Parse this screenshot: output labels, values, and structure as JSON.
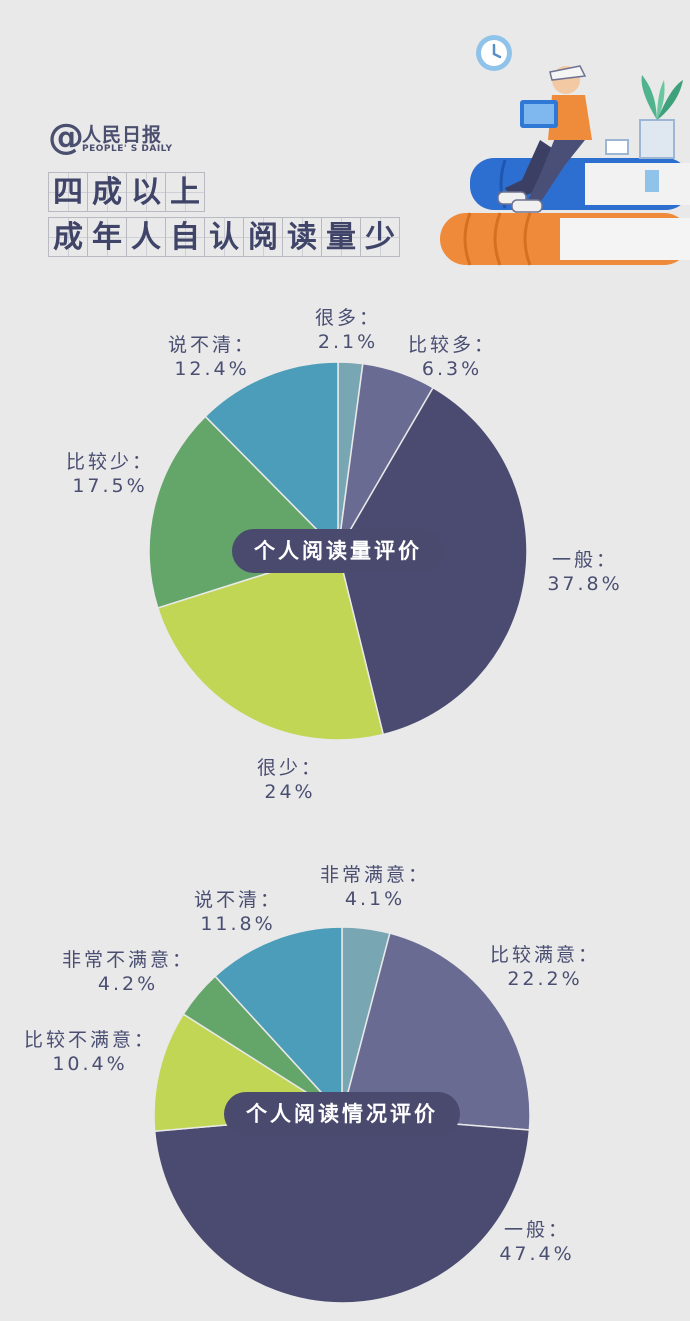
{
  "brand": {
    "at": "@",
    "cn": "人民日报",
    "en": "PEOPLE' S DAILY"
  },
  "headline": {
    "line1": [
      "四",
      "成",
      "以",
      "上"
    ],
    "line2": [
      "成",
      "年",
      "人",
      "自",
      "认",
      "阅",
      "读",
      "量",
      "少"
    ]
  },
  "chart_data": [
    {
      "type": "pie",
      "title": "个人阅读量评价",
      "categories": [
        "很多",
        "比较多",
        "一般",
        "很少",
        "比较少",
        "说不清"
      ],
      "values": [
        2.1,
        6.3,
        37.8,
        24,
        17.5,
        12.4
      ],
      "labels": [
        "2.1%",
        "6.3%",
        "37.8%",
        "24%",
        "17.5%",
        "12.4%"
      ],
      "colors": [
        "#78a6b3",
        "#6a6b93",
        "#4b4b71",
        "#c2d655",
        "#64a56a",
        "#4b9db9"
      ]
    },
    {
      "type": "pie",
      "title": "个人阅读情况评价",
      "categories": [
        "非常满意",
        "比较满意",
        "一般",
        "比较不满意",
        "非常不满意",
        "说不清"
      ],
      "values": [
        4.1,
        22.2,
        47.4,
        10.4,
        4.2,
        11.8
      ],
      "labels": [
        "4.1%",
        "22.2%",
        "47.4%",
        "10.4%",
        "4.2%",
        "11.8%"
      ],
      "colors": [
        "#78a6b3",
        "#6a6b93",
        "#4b4b71",
        "#c2d655",
        "#64a56a",
        "#4b9db9"
      ]
    }
  ]
}
